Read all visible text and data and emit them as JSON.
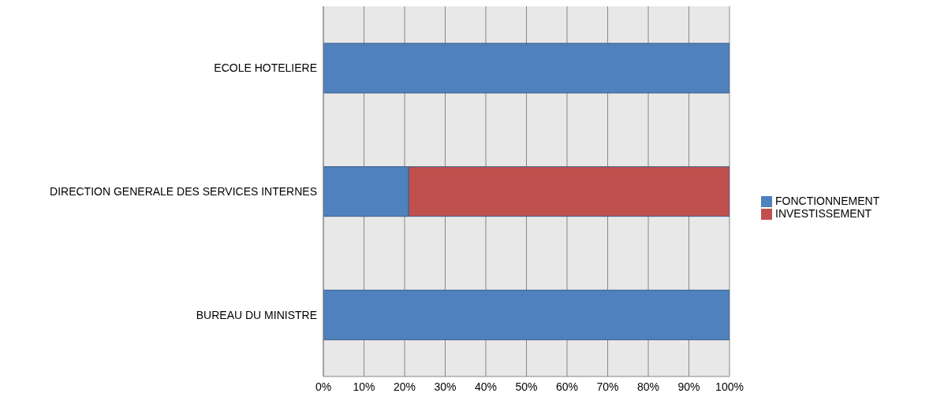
{
  "chart_data": {
    "type": "bar",
    "orientation": "horizontal",
    "stacked": true,
    "categories": [
      "ECOLE HOTELIERE",
      "DIRECTION GENERALE DES SERVICES INTERNES",
      "BUREAU DU MINISTRE"
    ],
    "series": [
      {
        "name": "FONCTIONNEMENT",
        "color": "#4f81bd",
        "values": [
          100,
          21,
          100
        ]
      },
      {
        "name": "INVESTISSEMENT",
        "color": "#c0504d",
        "values": [
          0,
          79,
          0
        ]
      }
    ],
    "xlim": [
      0,
      100
    ],
    "xticks": [
      {
        "value": 0,
        "label": "0%"
      },
      {
        "value": 10,
        "label": "10%"
      },
      {
        "value": 20,
        "label": "20%"
      },
      {
        "value": 30,
        "label": "30%"
      },
      {
        "value": 40,
        "label": "40%"
      },
      {
        "value": 50,
        "label": "50%"
      },
      {
        "value": 60,
        "label": "60%"
      },
      {
        "value": 70,
        "label": "70%"
      },
      {
        "value": 80,
        "label": "80%"
      },
      {
        "value": 90,
        "label": "90%"
      },
      {
        "value": 100,
        "label": "100%"
      }
    ],
    "grid": "x",
    "legend": "right"
  }
}
